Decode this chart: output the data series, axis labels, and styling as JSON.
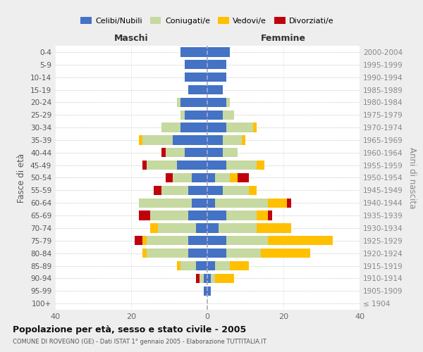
{
  "age_groups": [
    "100+",
    "95-99",
    "90-94",
    "85-89",
    "80-84",
    "75-79",
    "70-74",
    "65-69",
    "60-64",
    "55-59",
    "50-54",
    "45-49",
    "40-44",
    "35-39",
    "30-34",
    "25-29",
    "20-24",
    "15-19",
    "10-14",
    "5-9",
    "0-4"
  ],
  "birth_years": [
    "≤ 1904",
    "1905-1909",
    "1910-1914",
    "1915-1919",
    "1920-1924",
    "1925-1929",
    "1930-1934",
    "1935-1939",
    "1940-1944",
    "1945-1949",
    "1950-1954",
    "1955-1959",
    "1960-1964",
    "1965-1969",
    "1970-1974",
    "1975-1979",
    "1980-1984",
    "1985-1989",
    "1990-1994",
    "1995-1999",
    "2000-2004"
  ],
  "colors": {
    "celibe": "#4472c4",
    "coniugato": "#c6d9a0",
    "vedovo": "#ffc000",
    "divorziato": "#c0000b"
  },
  "maschi": {
    "celibe": [
      0,
      1,
      1,
      3,
      5,
      5,
      3,
      5,
      4,
      5,
      4,
      8,
      6,
      9,
      7,
      6,
      7,
      5,
      6,
      6,
      7
    ],
    "coniugato": [
      0,
      0,
      1,
      4,
      11,
      11,
      10,
      10,
      14,
      7,
      5,
      8,
      5,
      8,
      5,
      1,
      1,
      0,
      0,
      0,
      0
    ],
    "vedovo": [
      0,
      0,
      0,
      1,
      1,
      1,
      2,
      0,
      0,
      0,
      0,
      0,
      0,
      1,
      0,
      0,
      0,
      0,
      0,
      0,
      0
    ],
    "divorziato": [
      0,
      0,
      1,
      0,
      0,
      2,
      0,
      3,
      0,
      2,
      2,
      1,
      1,
      0,
      0,
      0,
      0,
      0,
      0,
      0,
      0
    ]
  },
  "femmine": {
    "nubile": [
      0,
      1,
      1,
      2,
      5,
      5,
      3,
      5,
      2,
      4,
      2,
      5,
      4,
      4,
      5,
      4,
      5,
      4,
      5,
      5,
      6
    ],
    "coniugata": [
      0,
      0,
      1,
      4,
      9,
      11,
      10,
      8,
      14,
      7,
      4,
      8,
      4,
      5,
      7,
      3,
      1,
      0,
      0,
      0,
      0
    ],
    "vedova": [
      0,
      0,
      5,
      5,
      13,
      17,
      9,
      3,
      5,
      2,
      2,
      2,
      0,
      1,
      1,
      0,
      0,
      0,
      0,
      0,
      0
    ],
    "divorziata": [
      0,
      0,
      0,
      0,
      0,
      0,
      0,
      1,
      1,
      0,
      3,
      0,
      0,
      0,
      0,
      0,
      0,
      0,
      0,
      0,
      0
    ]
  },
  "xlim": 40,
  "title": "Popolazione per età, sesso e stato civile - 2005",
  "subtitle": "COMUNE DI ROVEGNO (GE) - Dati ISTAT 1° gennaio 2005 - Elaborazione TUTTITALIA.IT",
  "ylabel_left": "Fasce di età",
  "ylabel_right": "Anni di nascita",
  "xlabel_maschi": "Maschi",
  "xlabel_femmine": "Femmine",
  "bg_color": "#eeeeee",
  "plot_bg": "#ffffff",
  "grid_color": "#cccccc"
}
